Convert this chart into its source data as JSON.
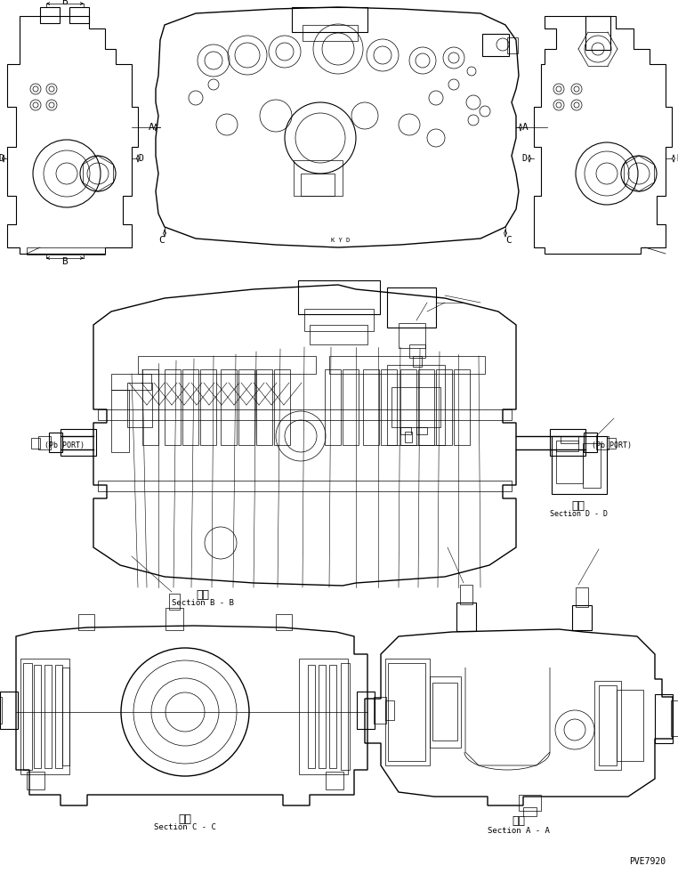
{
  "background_color": "#ffffff",
  "line_color": "#000000",
  "lw_thin": 0.5,
  "lw_med": 0.8,
  "lw_thick": 1.0,
  "fig_width": 7.62,
  "fig_height": 9.82,
  "labels": {
    "section_bb_kanji": "断面",
    "section_bb": "Section B - B",
    "section_cc_kanji": "断面",
    "section_cc": "Section C - C",
    "section_aa_kanji": "断面",
    "section_aa": "Section A - A",
    "section_dd_kanji": "断面",
    "section_dd": "Section D - D",
    "pb_port_left": "(Pb PORT)",
    "pb_port_right": "(Pb PORT)",
    "part_number": "PVE7920",
    "label_A": "A",
    "label_B": "B",
    "label_C": "C",
    "label_D": "D"
  },
  "font_sizes": {
    "section_label": 6,
    "kanji": 8,
    "port_label": 6,
    "part_number": 7,
    "dimension_letter": 8
  }
}
